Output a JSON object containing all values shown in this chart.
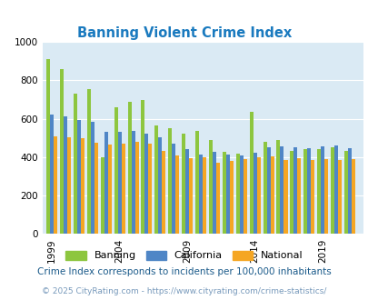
{
  "title": "Banning Violent Crime Index",
  "title_color": "#1a7abf",
  "subtitle": "Crime Index corresponds to incidents per 100,000 inhabitants",
  "subtitle_color": "#1a5a8a",
  "footer": "© 2025 CityRating.com - https://www.cityrating.com/crime-statistics/",
  "footer_color": "#7799bb",
  "years": [
    1999,
    2000,
    2001,
    2002,
    2003,
    2004,
    2005,
    2006,
    2007,
    2008,
    2009,
    2010,
    2011,
    2012,
    2013,
    2014,
    2015,
    2016,
    2017,
    2018,
    2019,
    2020,
    2021
  ],
  "banning": [
    912,
    860,
    730,
    755,
    400,
    660,
    690,
    700,
    565,
    550,
    525,
    535,
    490,
    430,
    420,
    635,
    480,
    490,
    435,
    440,
    440,
    450,
    435
  ],
  "california": [
    620,
    615,
    595,
    585,
    530,
    530,
    535,
    525,
    505,
    470,
    440,
    415,
    430,
    415,
    410,
    425,
    450,
    455,
    450,
    445,
    455,
    460,
    445
  ],
  "national": [
    510,
    505,
    500,
    475,
    465,
    470,
    480,
    470,
    435,
    410,
    395,
    400,
    370,
    380,
    390,
    400,
    405,
    385,
    395,
    385,
    390,
    385,
    390
  ],
  "banning_color": "#8dc63f",
  "california_color": "#4f86c6",
  "national_color": "#f5a623",
  "bg_color": "#daeaf4",
  "ylim": [
    0,
    1000
  ],
  "yticks": [
    0,
    200,
    400,
    600,
    800,
    1000
  ],
  "xtick_years": [
    1999,
    2004,
    2009,
    2014,
    2019
  ],
  "legend_labels": [
    "Banning",
    "California",
    "National"
  ],
  "bar_width": 0.27
}
